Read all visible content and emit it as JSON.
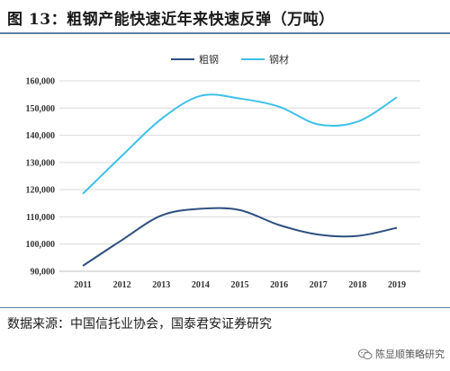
{
  "title": "图 13：粗钢产能快速近年来快速反弹（万吨）",
  "source_note": "数据来源：中国信托业协会，国泰君安证券研究",
  "watermark": "陈显顺策略研究",
  "chart_data": {
    "type": "line",
    "x": [
      2011,
      2012,
      2013,
      2014,
      2015,
      2016,
      2017,
      2018,
      2019
    ],
    "series": [
      {
        "name": "粗钢",
        "color": "#2e4f80",
        "values": [
          92000,
          101500,
          110500,
          113000,
          112500,
          107000,
          103500,
          103000,
          106000
        ]
      },
      {
        "name": "钢材",
        "color": "#3fc0ea",
        "values": [
          118500,
          132500,
          146000,
          154500,
          153500,
          150500,
          144000,
          145000,
          154000
        ]
      }
    ],
    "ylim": [
      90000,
      160000
    ],
    "yticks": [
      90000,
      100000,
      110000,
      120000,
      130000,
      140000,
      150000,
      160000
    ],
    "ytick_labels": [
      "90,000",
      "100,000",
      "110,000",
      "120,000",
      "130,000",
      "140,000",
      "150,000",
      "160,000"
    ],
    "xtick_labels": [
      "2011",
      "2012",
      "2013",
      "2014",
      "2015",
      "2016",
      "2017",
      "2018",
      "2019"
    ],
    "grid": true,
    "legend_position": "top"
  }
}
